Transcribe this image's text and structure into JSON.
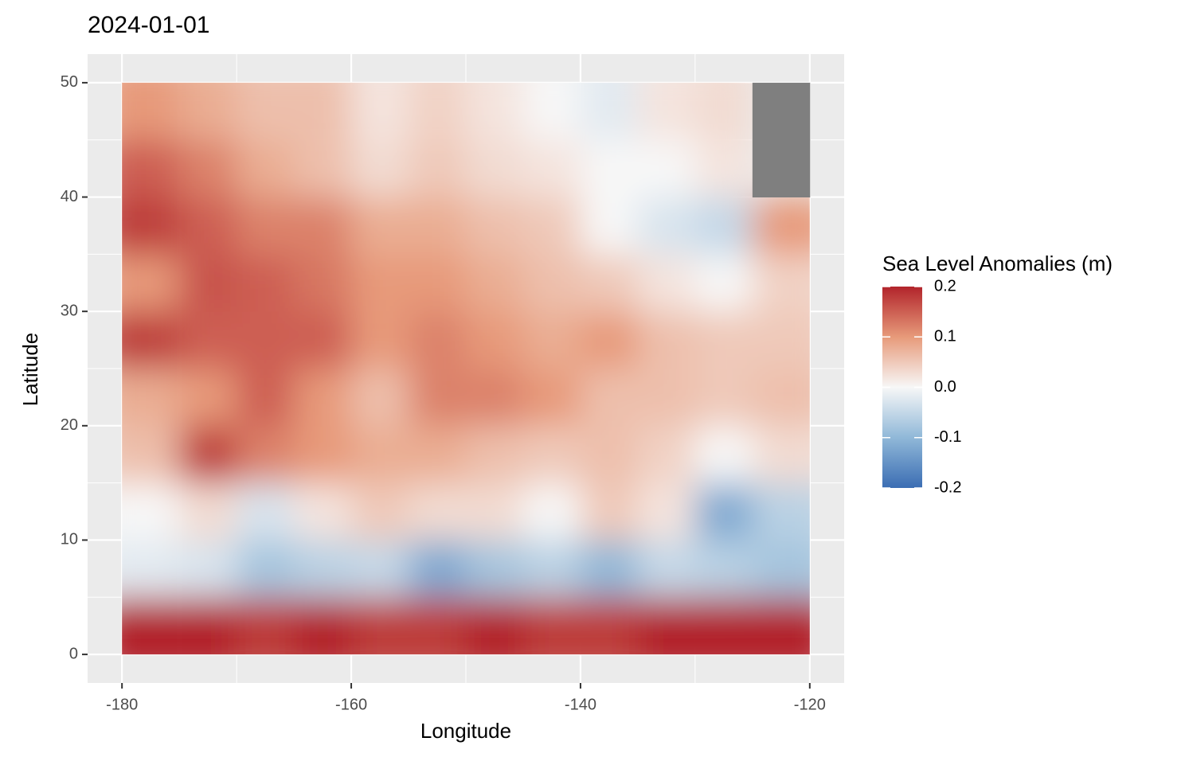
{
  "chart_data": {
    "type": "heatmap",
    "title": "2024-01-01",
    "x_label": "Longitude",
    "y_label": "Latitude",
    "x": [
      -177.5,
      -172.5,
      -167.5,
      -162.5,
      -157.5,
      -152.5,
      -147.5,
      -142.5,
      -137.5,
      -132.5,
      -127.5,
      -122.5
    ],
    "y": [
      2.5,
      7.5,
      12.5,
      17.5,
      22.5,
      27.5,
      32.5,
      37.5,
      42.5,
      47.5
    ],
    "z": [
      [
        0.2,
        0.2,
        0.18,
        0.2,
        0.18,
        0.18,
        0.2,
        0.18,
        0.18,
        0.2,
        0.2,
        0.2
      ],
      [
        -0.02,
        -0.03,
        -0.08,
        -0.06,
        -0.05,
        -0.12,
        -0.08,
        -0.06,
        -0.1,
        -0.05,
        -0.06,
        -0.08
      ],
      [
        0.0,
        0.03,
        -0.03,
        0.02,
        0.05,
        0.03,
        0.03,
        0.0,
        0.05,
        0.02,
        -0.12,
        -0.06
      ],
      [
        0.06,
        0.18,
        0.12,
        0.1,
        0.08,
        0.08,
        0.06,
        0.05,
        0.06,
        0.04,
        0.0,
        0.03
      ],
      [
        0.08,
        0.1,
        0.15,
        0.1,
        0.06,
        0.12,
        0.12,
        0.1,
        0.06,
        0.06,
        0.05,
        0.06
      ],
      [
        0.18,
        0.15,
        0.15,
        0.15,
        0.1,
        0.12,
        0.1,
        0.08,
        0.1,
        0.06,
        0.05,
        0.05
      ],
      [
        0.1,
        0.16,
        0.15,
        0.13,
        0.1,
        0.1,
        0.08,
        0.06,
        0.05,
        0.02,
        0.0,
        0.04
      ],
      [
        0.18,
        0.15,
        0.12,
        0.12,
        0.08,
        0.08,
        0.06,
        0.05,
        0.0,
        -0.03,
        -0.05,
        0.1
      ],
      [
        0.15,
        0.12,
        0.08,
        0.06,
        0.03,
        0.05,
        0.03,
        0.02,
        0.0,
        0.0,
        0.02,
        null
      ],
      [
        0.1,
        0.08,
        0.06,
        0.06,
        0.02,
        0.04,
        0.02,
        0.0,
        -0.02,
        0.02,
        0.03,
        null
      ]
    ],
    "cell_width": 5,
    "cell_height": 5,
    "xlim": [
      -183,
      -117
    ],
    "ylim": [
      -2.5,
      52.5
    ],
    "xticks": [
      -180,
      -160,
      -140,
      -120
    ],
    "yticks": [
      0,
      10,
      20,
      30,
      40,
      50
    ],
    "grid": true,
    "na_color": "#7f7f7f",
    "legend_title": "Sea Level Anomalies (m)",
    "color_scale": {
      "limits": [
        -0.2,
        0.2
      ],
      "colors": [
        "#3b6db3",
        "#90b8d8",
        "#f7f7f7",
        "#e79a7a",
        "#b2242b"
      ],
      "ticks": [
        0.2,
        0.1,
        {
          "value": 0,
          "label": "0.0"
        },
        -0.1,
        -0.2
      ]
    }
  }
}
